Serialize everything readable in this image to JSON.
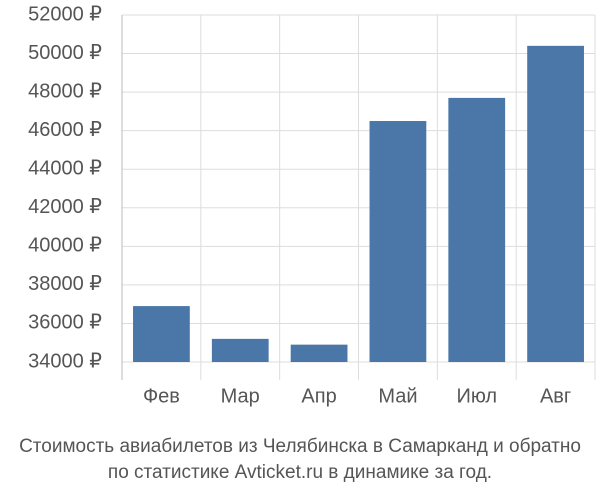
{
  "chart_data": {
    "type": "bar",
    "title": "Стоимость авиабилетов из Челябинска в Самарканд и обратно",
    "subtitle": "по статистике Avticket.ru в динамике за год.",
    "categories": [
      "Фев",
      "Мар",
      "Апр",
      "Май",
      "Июл",
      "Авг"
    ],
    "values": [
      36900,
      35200,
      34900,
      46500,
      47700,
      50400
    ],
    "color": "#4a76a8",
    "ylim": [
      34000,
      52000
    ],
    "yticks": [
      {
        "value": 34000,
        "label": "34000 ₽"
      },
      {
        "value": 36000,
        "label": "36000 ₽"
      },
      {
        "value": 38000,
        "label": "38000 ₽"
      },
      {
        "value": 40000,
        "label": "40000 ₽"
      },
      {
        "value": 42000,
        "label": "42000 ₽"
      },
      {
        "value": 44000,
        "label": "44000 ₽"
      },
      {
        "value": 46000,
        "label": "46000 ₽"
      },
      {
        "value": 48000,
        "label": "48000 ₽"
      },
      {
        "value": 50000,
        "label": "50000 ₽"
      },
      {
        "value": 52000,
        "label": "52000 ₽"
      }
    ],
    "grid": true
  }
}
